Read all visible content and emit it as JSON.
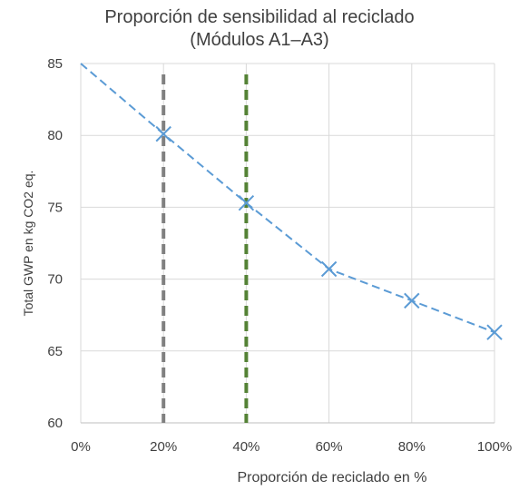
{
  "chart_data": {
    "type": "line",
    "title_line1": "Proporción de sensibilidad al reciclado",
    "title_line2": "(Módulos A1–A3)",
    "xlabel": "Proporción de reciclado en %",
    "ylabel": "Total GWP en kg CO2 eq.",
    "x": [
      0,
      20,
      40,
      60,
      80,
      100
    ],
    "x_tick_labels": [
      "0%",
      "20%",
      "40%",
      "60%",
      "80%",
      "100%"
    ],
    "xlim": [
      0,
      100
    ],
    "y_ticks": [
      60,
      65,
      70,
      75,
      80,
      85
    ],
    "ylim": [
      60,
      85
    ],
    "grid": true,
    "series": [
      {
        "values": [
          85,
          80.1,
          75.3,
          70.7,
          68.5,
          66.3
        ],
        "marker_from_index": 1,
        "color": "#5b9bd5",
        "line_style": "dashed",
        "marker": "x"
      }
    ],
    "reference_lines": [
      {
        "x": 20,
        "color": "#808080",
        "style": "dashed"
      },
      {
        "x": 40,
        "color": "#548235",
        "style": "dashed"
      }
    ]
  }
}
